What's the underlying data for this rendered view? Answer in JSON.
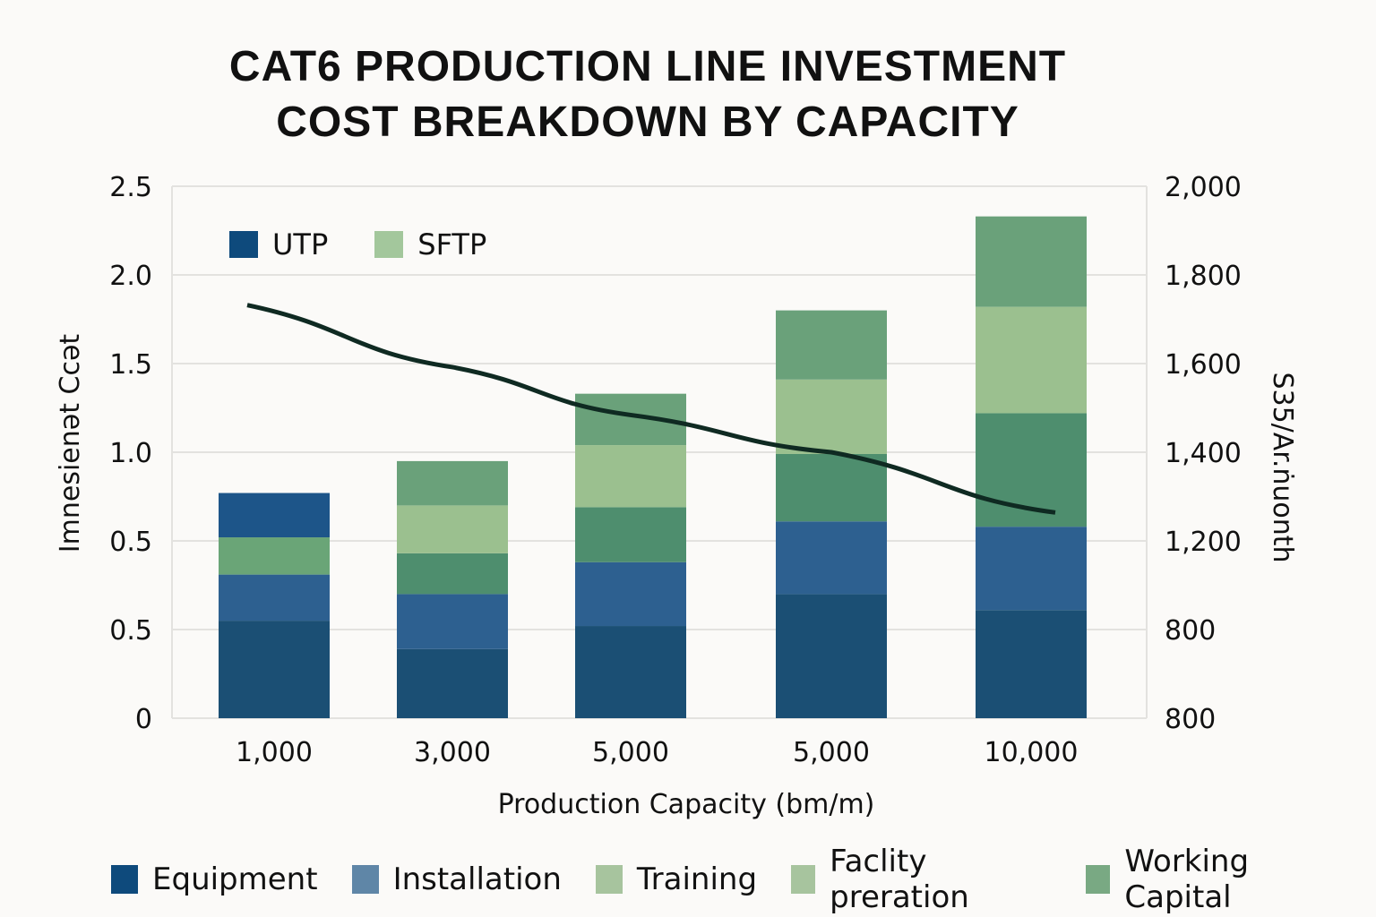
{
  "chart_data": {
    "type": "bar",
    "stacked": true,
    "title": "CAT6 PRODUCTION LINE INVESTMENT COST BREAKDOWN BY CAPACITY",
    "title_lines": [
      "CAT6 PRODUCTION LINE INVESTMENT",
      "COST BREAKDOWN BY CAPACITY"
    ],
    "xlabel": "Production Capacity (bm/m)",
    "ylabel": "Imnesienәt Ccәt",
    "y2label": "S35/Ar.ṅuonth",
    "categories": [
      "1,000",
      "3,000",
      "5,000",
      "5,000",
      "10,000"
    ],
    "y_ticks": [
      "0",
      "0.5",
      "0.5",
      "1.0",
      "1.5",
      "2.0",
      "2.5"
    ],
    "y2_ticks": [
      "800",
      "800",
      "1,200",
      "1,400",
      "1,600",
      "1,800",
      "2,000"
    ],
    "ylim": [
      0,
      3.0
    ],
    "grid": true,
    "segments": [
      {
        "name": "seg1",
        "color": "#1b4f74",
        "values": [
          0.55,
          0.39,
          0.52,
          0.7,
          0.61
        ]
      },
      {
        "name": "seg2",
        "color": "#2d6090",
        "values": [
          0.26,
          0.31,
          0.36,
          0.41,
          0.47
        ]
      },
      {
        "name": "seg3",
        "color": "#4e8e6e",
        "values": [
          0.0,
          0.23,
          0.31,
          0.38,
          0.64
        ]
      },
      {
        "name": "seg4",
        "color": "#6aa577",
        "values": [
          0.21,
          0.0,
          0.0,
          0.0,
          0.0
        ]
      },
      {
        "name": "seg5",
        "color": "#9bc08f",
        "values": [
          0.0,
          0.27,
          0.35,
          0.42,
          0.6
        ]
      },
      {
        "name": "seg6",
        "color": "#6aa17a",
        "values": [
          0.0,
          0.25,
          0.29,
          0.39,
          0.51
        ]
      },
      {
        "name": "seg7",
        "color": "#1d5589",
        "values": [
          0.25,
          0.0,
          0.0,
          0.0,
          0.0
        ]
      }
    ],
    "line_series": {
      "name": "cost per unit",
      "color": "#0f2a22",
      "axis": "right",
      "x_positions": [
        0,
        1,
        2,
        3,
        4
      ],
      "points_y_left_units": [
        2.33,
        1.98,
        1.71,
        1.5,
        1.16
      ]
    },
    "legend_top": [
      {
        "label": "UTP",
        "color": "#0e4a7c"
      },
      {
        "label": "SFTP",
        "color": "#a3c79c"
      }
    ],
    "legend_bottom": [
      {
        "label": "Equipment",
        "color": "#0e4a7c"
      },
      {
        "label": "Installation",
        "color": "#5f86a7"
      },
      {
        "label": "Training",
        "color": "#a7c49e"
      },
      {
        "label": "Faclity preration",
        "color": "#a7c49e"
      },
      {
        "label": "Working Capital",
        "color": "#79a983"
      }
    ]
  }
}
